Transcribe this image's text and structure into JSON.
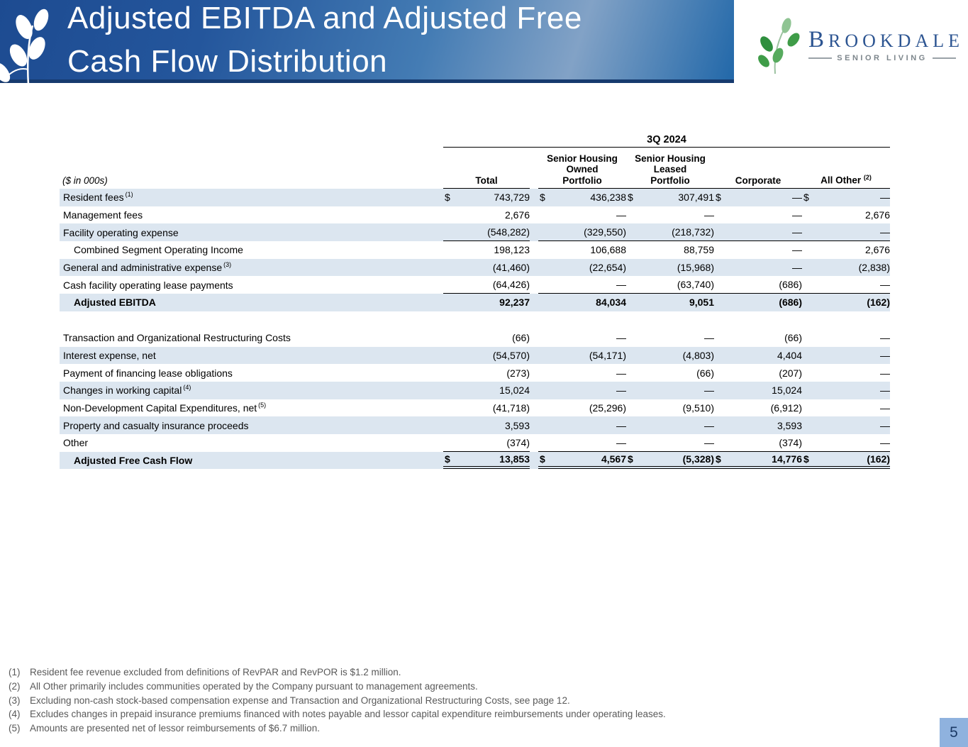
{
  "header": {
    "title_line1": "Adjusted EBITDA and Adjusted Free",
    "title_line2": "Cash Flow Distribution",
    "logo": {
      "brand": "BROOKDALE",
      "tagline": "SENIOR LIVING"
    }
  },
  "table": {
    "period_header": "3Q 2024",
    "units_label": "($ in 000s)",
    "columns": [
      {
        "label": "Total"
      },
      {
        "label": "Senior Housing\nOwned\nPortfolio"
      },
      {
        "label": "Senior Housing\nLeased\nPortfolio"
      },
      {
        "label": "Corporate"
      },
      {
        "label": "All Other",
        "sup": "(2)"
      }
    ],
    "rows": [
      {
        "label": "Resident fees",
        "sup": "(1)",
        "shaded": true,
        "dollar": true,
        "values": [
          "743,729",
          "436,238",
          "307,491",
          "—",
          "—"
        ]
      },
      {
        "label": "Management fees",
        "values": [
          "2,676",
          "—",
          "—",
          "—",
          "2,676"
        ]
      },
      {
        "label": "Facility operating expense",
        "shaded": true,
        "rule": "single",
        "values": [
          "(548,282)",
          "(329,550)",
          "(218,732)",
          "—",
          "—"
        ]
      },
      {
        "label": "Combined Segment Operating Income",
        "indent": true,
        "values": [
          "198,123",
          "106,688",
          "88,759",
          "—",
          "2,676"
        ]
      },
      {
        "label": "General and administrative expense",
        "sup": "(3)",
        "shaded": true,
        "values": [
          "(41,460)",
          "(22,654)",
          "(15,968)",
          "—",
          "(2,838)"
        ]
      },
      {
        "label": "Cash facility operating lease payments",
        "rule": "single",
        "values": [
          "(64,426)",
          "—",
          "(63,740)",
          "(686)",
          "—"
        ]
      },
      {
        "label": "Adjusted EBITDA",
        "bold": true,
        "indent": true,
        "shaded": true,
        "spacer_after": true,
        "values": [
          "92,237",
          "84,034",
          "9,051",
          "(686)",
          "(162)"
        ]
      },
      {
        "label": "Transaction and Organizational Restructuring Costs",
        "values": [
          "(66)",
          "—",
          "—",
          "(66)",
          "—"
        ]
      },
      {
        "label": "Interest expense, net",
        "shaded": true,
        "values": [
          "(54,570)",
          "(54,171)",
          "(4,803)",
          "4,404",
          "—"
        ]
      },
      {
        "label": "Payment of financing lease obligations",
        "values": [
          "(273)",
          "—",
          "(66)",
          "(207)",
          "—"
        ]
      },
      {
        "label": "Changes in working capital",
        "sup": "(4)",
        "shaded": true,
        "values": [
          "15,024",
          "—",
          "—",
          "15,024",
          "—"
        ]
      },
      {
        "label": "Non-Development Capital Expenditures, net",
        "sup": "(5)",
        "values": [
          "(41,718)",
          "(25,296)",
          "(9,510)",
          "(6,912)",
          "—"
        ]
      },
      {
        "label": "Property and casualty insurance proceeds",
        "shaded": true,
        "values": [
          "3,593",
          "—",
          "—",
          "3,593",
          "—"
        ]
      },
      {
        "label": "Other",
        "rule": "single",
        "values": [
          "(374)",
          "—",
          "—",
          "(374)",
          "—"
        ]
      },
      {
        "label": "Adjusted Free Cash Flow",
        "bold": true,
        "indent": true,
        "shaded": true,
        "dollar": true,
        "rule": "double",
        "values": [
          "13,853",
          "4,567",
          "(5,328)",
          "14,776",
          "(162)"
        ]
      }
    ]
  },
  "footnotes": [
    {
      "marker": "(1)",
      "text": "Resident fee revenue excluded from definitions of RevPAR and RevPOR is $1.2 million."
    },
    {
      "marker": "(2)",
      "text": "All Other primarily includes communities operated by the Company pursuant to management agreements."
    },
    {
      "marker": "(3)",
      "text": "Excluding non-cash stock-based compensation expense and Transaction and Organizational Restructuring Costs, see page 12."
    },
    {
      "marker": "(4)",
      "text": "Excludes changes in prepaid insurance premiums financed with notes payable and lessor capital expenditure reimbursements under operating leases."
    },
    {
      "marker": "(5)",
      "text": "Amounts are presented net of lessor reimbursements of $6.7 million."
    }
  ],
  "page_number": "5",
  "colors": {
    "header_gradient_start": "#1d4b91",
    "header_gradient_light": "#82a2c6",
    "header_rule": "#163a6e",
    "row_shading": "#dce6f0",
    "footnote_gray": "#595959",
    "brand_navy": "#2d5592",
    "page_badge_bg": "#8fb2de"
  }
}
